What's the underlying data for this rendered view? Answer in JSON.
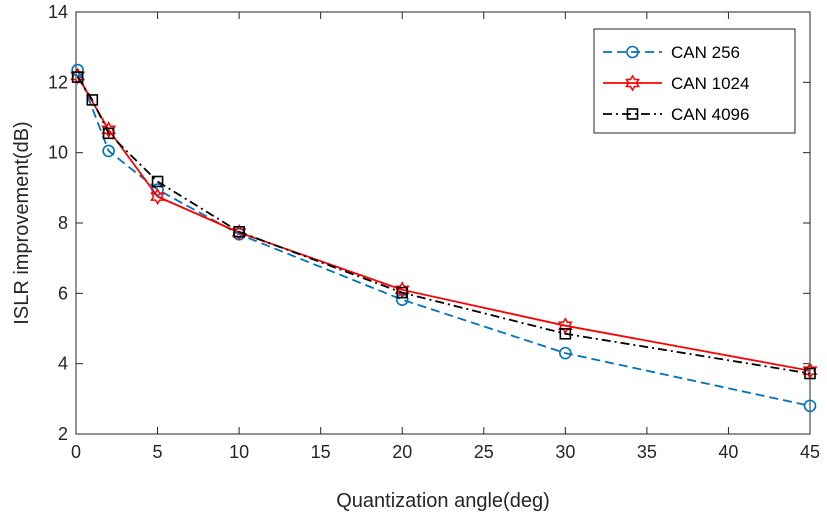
{
  "chart_data": {
    "type": "line",
    "xlabel": "Quantization angle(deg)",
    "ylabel": "ISLR  improvement(dB)",
    "xlim": [
      0,
      45
    ],
    "ylim": [
      2,
      14
    ],
    "xticks": [
      0,
      5,
      10,
      15,
      20,
      25,
      30,
      35,
      40,
      45
    ],
    "yticks": [
      2,
      4,
      6,
      8,
      10,
      12,
      14
    ],
    "grid": false,
    "legend_position": "top-right",
    "series": [
      {
        "name": "CAN 256",
        "color": "#0072BD",
        "line_style": "dashed",
        "marker": "circle",
        "x": [
          0.1,
          2,
          5,
          10,
          20,
          30,
          45
        ],
        "y": [
          12.35,
          10.05,
          8.95,
          7.68,
          5.82,
          4.3,
          2.8
        ]
      },
      {
        "name": "CAN 1024",
        "color": "#FF0000",
        "line_style": "solid",
        "marker": "hexagram",
        "x": [
          0.1,
          2,
          5,
          10,
          20,
          30,
          45
        ],
        "y": [
          12.18,
          10.65,
          8.75,
          7.73,
          6.1,
          5.08,
          3.8
        ]
      },
      {
        "name": "CAN 4096",
        "color": "#000000",
        "line_style": "dashdot",
        "marker": "square",
        "x": [
          0.1,
          1,
          2,
          5,
          10,
          20,
          30,
          45
        ],
        "y": [
          12.15,
          11.5,
          10.55,
          9.18,
          7.75,
          6.02,
          4.85,
          3.72
        ]
      }
    ]
  }
}
